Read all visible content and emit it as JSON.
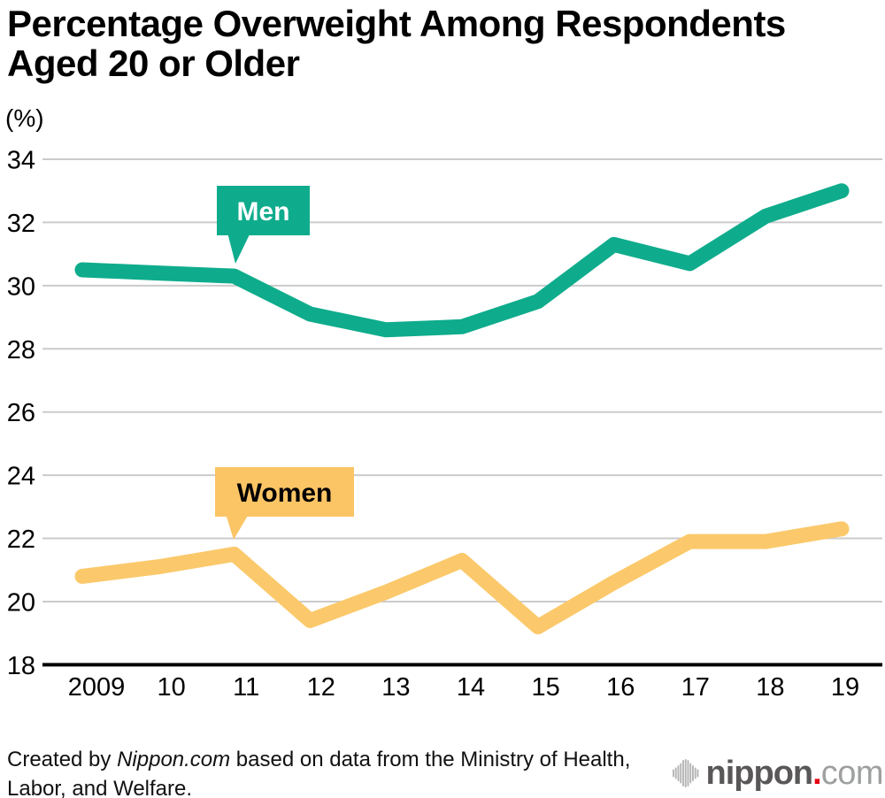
{
  "chart_data": {
    "type": "line",
    "title": "Percentage Overweight Among Respondents\nAged 20 or Older",
    "ylabel": "(%)",
    "xlabel": "",
    "ylim": [
      18,
      34
    ],
    "y_ticks": [
      34,
      32,
      30,
      28,
      26,
      24,
      22,
      20,
      18
    ],
    "grid": true,
    "legend_position": "inline-callout-bubbles",
    "x_labels": [
      "2009",
      "10",
      "11",
      "12",
      "13",
      "14",
      "15",
      "16",
      "17",
      "18",
      "19"
    ],
    "series": [
      {
        "name": "Men",
        "color": "#0EAC8C",
        "label_bg": "#0EAC8C",
        "label_color": "#FFFFFF",
        "values": [
          30.5,
          30.4,
          30.3,
          29.1,
          28.6,
          28.7,
          29.5,
          31.3,
          30.7,
          32.2,
          33.0
        ]
      },
      {
        "name": "Women",
        "color": "#FBC96B",
        "label_bg": "#FBC566",
        "label_color": "#000000",
        "values": [
          20.8,
          21.1,
          21.5,
          19.4,
          20.3,
          21.3,
          19.2,
          20.6,
          21.9,
          21.9,
          22.3
        ]
      }
    ]
  },
  "credit": {
    "prefix": "Created by ",
    "source": "Nippon.com",
    "suffix": " based on data from the Ministry of Health,\nLabor, and Welfare."
  },
  "logo": {
    "name_bold": "nippon",
    "dot": ".",
    "name_light": "com"
  },
  "colors": {
    "men_line": "#0EAC8C",
    "women_line": "#FBC96B",
    "women_bubble": "#FBC566",
    "gridline": "#CBCBCB",
    "axis": "#000000",
    "logo_dark": "#595757",
    "logo_light": "#9EA0A0",
    "logo_red": "#E60012",
    "logo_wave": "#B4B4B5"
  }
}
